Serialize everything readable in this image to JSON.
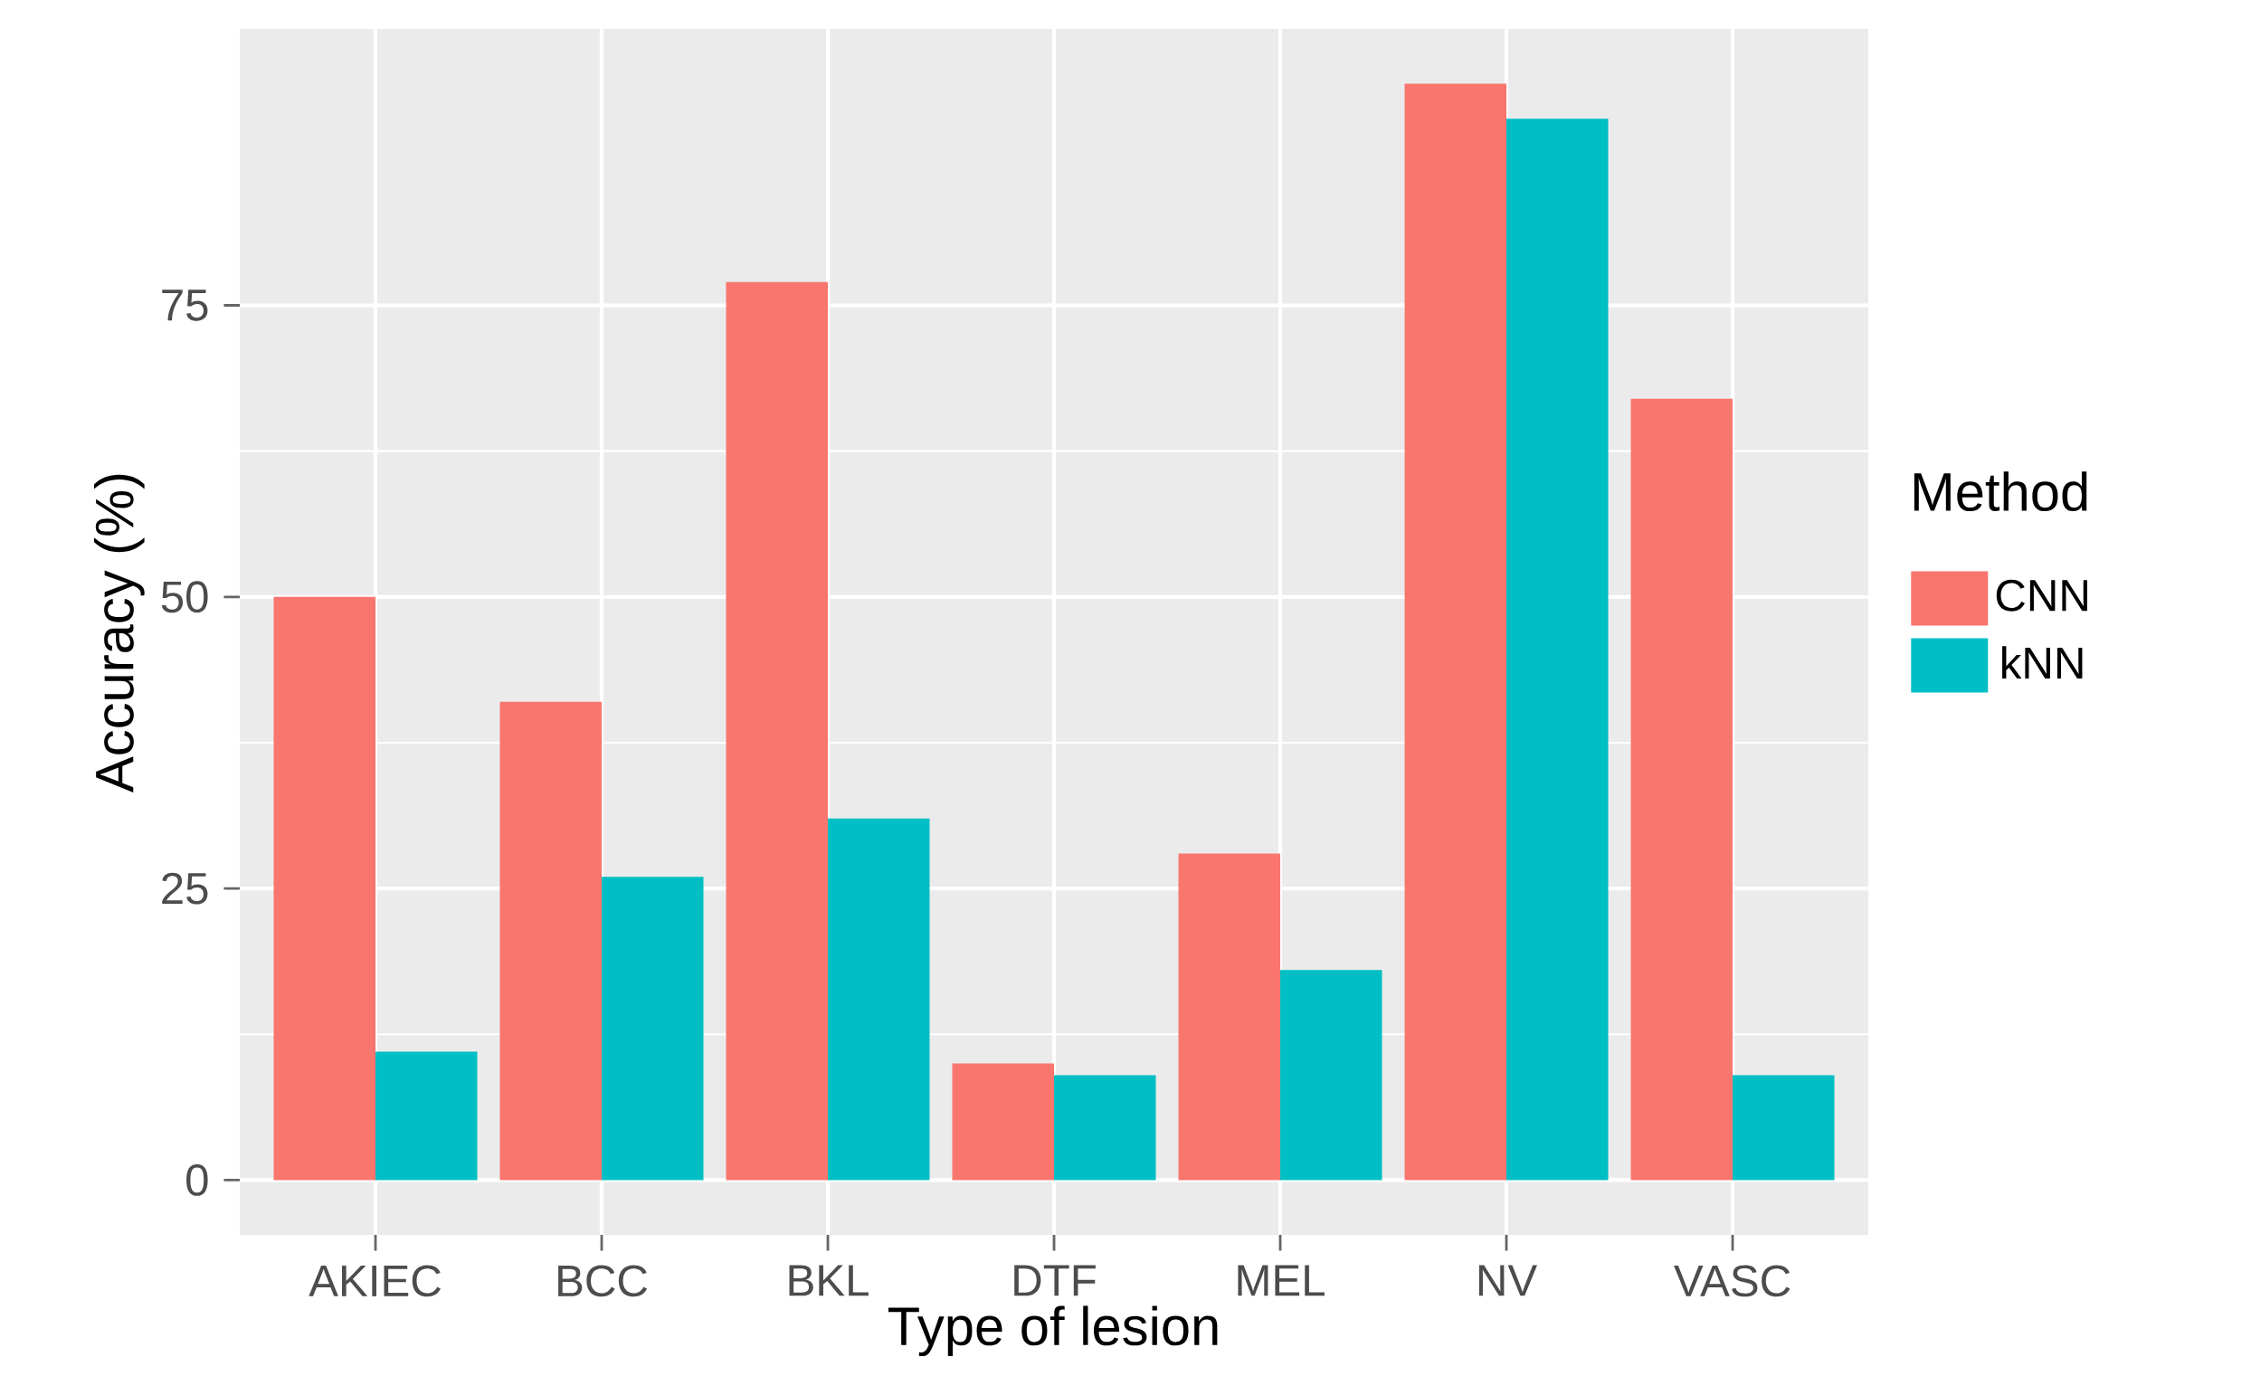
{
  "chart_data": {
    "type": "bar",
    "xlabel": "Type of lesion",
    "ylabel": "Accuracy (%)",
    "legend_title": "Method",
    "categories": [
      "AKIEC",
      "BCC",
      "BKL",
      "DTF",
      "MEL",
      "NV",
      "VASC"
    ],
    "series": [
      {
        "name": "CNN",
        "color": "#f8766d",
        "values": [
          50,
          41,
          77,
          10,
          28,
          94,
          67
        ]
      },
      {
        "name": "kNN",
        "color": "#00bfc4",
        "values": [
          11,
          26,
          31,
          9,
          18,
          91,
          9
        ]
      }
    ],
    "ylim": [
      -4.7,
      98.7
    ],
    "yticks": [
      0,
      25,
      50,
      75
    ],
    "grid": true,
    "legend": "right"
  }
}
